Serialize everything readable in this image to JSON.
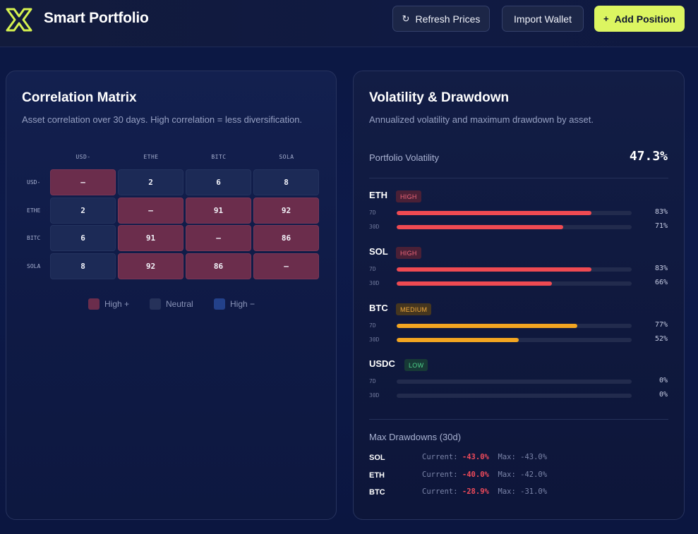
{
  "header": {
    "title": "Smart Portfolio",
    "refresh_label": "Refresh Prices",
    "refresh_icon": "↻",
    "import_label": "Import Wallet",
    "add_label": "Add Position",
    "add_icon": "+"
  },
  "correlation": {
    "title": "Correlation Matrix",
    "subtitle": "Asset correlation over 30 days. High correlation = less diversification.",
    "columns": [
      "USD-",
      "ETHE",
      "BITC",
      "SOLA"
    ],
    "rows": [
      {
        "label": "USD-",
        "cells": [
          {
            "value": "–",
            "level": "high"
          },
          {
            "value": "2",
            "level": "neutral"
          },
          {
            "value": "6",
            "level": "neutral"
          },
          {
            "value": "8",
            "level": "neutral"
          }
        ]
      },
      {
        "label": "ETHE",
        "cells": [
          {
            "value": "2",
            "level": "neutral"
          },
          {
            "value": "–",
            "level": "high"
          },
          {
            "value": "91",
            "level": "high"
          },
          {
            "value": "92",
            "level": "high"
          }
        ]
      },
      {
        "label": "BITC",
        "cells": [
          {
            "value": "6",
            "level": "neutral"
          },
          {
            "value": "91",
            "level": "high"
          },
          {
            "value": "–",
            "level": "high"
          },
          {
            "value": "86",
            "level": "high"
          }
        ]
      },
      {
        "label": "SOLA",
        "cells": [
          {
            "value": "8",
            "level": "neutral"
          },
          {
            "value": "92",
            "level": "high"
          },
          {
            "value": "86",
            "level": "high"
          },
          {
            "value": "–",
            "level": "high"
          }
        ]
      }
    ],
    "legend": [
      {
        "label": "High +",
        "color": "#6b2d4c"
      },
      {
        "label": "Neutral",
        "color": "#26325a"
      },
      {
        "label": "High −",
        "color": "#23418a"
      }
    ]
  },
  "volatility": {
    "title": "Volatility & Drawdown",
    "subtitle": "Annualized volatility and maximum drawdown by asset.",
    "portfolio_label": "Portfolio Volatility",
    "portfolio_value": "47.3%",
    "assets": [
      {
        "name": "ETH",
        "badge": "HIGH",
        "level": "high",
        "color": "#ef4a52",
        "bars": [
          {
            "label": "7D",
            "value": 83,
            "text": "83%"
          },
          {
            "label": "30D",
            "value": 71,
            "text": "71%"
          }
        ]
      },
      {
        "name": "SOL",
        "badge": "HIGH",
        "level": "high",
        "color": "#ef4a52",
        "bars": [
          {
            "label": "7D",
            "value": 83,
            "text": "83%"
          },
          {
            "label": "30D",
            "value": 66,
            "text": "66%"
          }
        ]
      },
      {
        "name": "BTC",
        "badge": "MEDIUM",
        "level": "medium",
        "color": "#f2a521",
        "bars": [
          {
            "label": "7D",
            "value": 77,
            "text": "77%"
          },
          {
            "label": "30D",
            "value": 52,
            "text": "52%"
          }
        ]
      },
      {
        "name": "USDC",
        "badge": "LOW",
        "level": "low",
        "color": "#3ccf7f",
        "bars": [
          {
            "label": "7D",
            "value": 0,
            "text": "0%"
          },
          {
            "label": "30D",
            "value": 0,
            "text": "0%"
          }
        ]
      }
    ],
    "drawdown_title": "Max Drawdowns (30d)",
    "drawdowns": [
      {
        "asset": "SOL",
        "current_label": "Current:",
        "current": "-43.0%",
        "max_label": "Max:",
        "max": "-43.0%"
      },
      {
        "asset": "ETH",
        "current_label": "Current:",
        "current": "-40.0%",
        "max_label": "Max:",
        "max": "-42.0%"
      },
      {
        "asset": "BTC",
        "current_label": "Current:",
        "current": "-28.9%",
        "max_label": "Max:",
        "max": "-31.0%"
      }
    ]
  }
}
